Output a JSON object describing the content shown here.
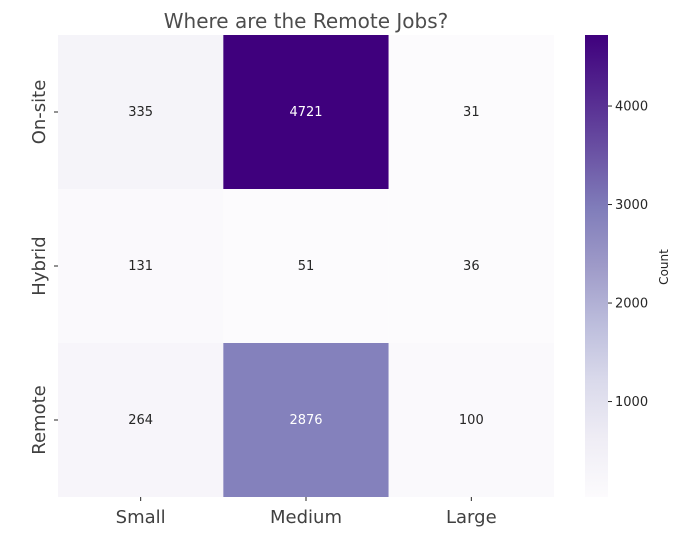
{
  "chart_data": {
    "type": "heatmap",
    "title": "Where are the Remote Jobs?",
    "xlabel": "",
    "ylabel": "",
    "x_categories": [
      "Small",
      "Medium",
      "Large"
    ],
    "y_categories": [
      "On-site",
      "Hybrid",
      "Remote"
    ],
    "values": [
      [
        335,
        4721,
        31
      ],
      [
        131,
        51,
        36
      ],
      [
        264,
        2876,
        100
      ]
    ],
    "colorbar": {
      "label": "Count",
      "range": [
        31,
        4721
      ],
      "ticks": [
        1000,
        2000,
        3000,
        4000
      ],
      "tick_labels": [
        "1000",
        "2000",
        "3000",
        "4000"
      ]
    },
    "colormap": "Purples",
    "colors": {
      "low": "#fcfbfd",
      "high": "#3f007d",
      "title": "#4d4d4d",
      "text_dark": "#262626",
      "text_light": "#ffffff"
    }
  }
}
